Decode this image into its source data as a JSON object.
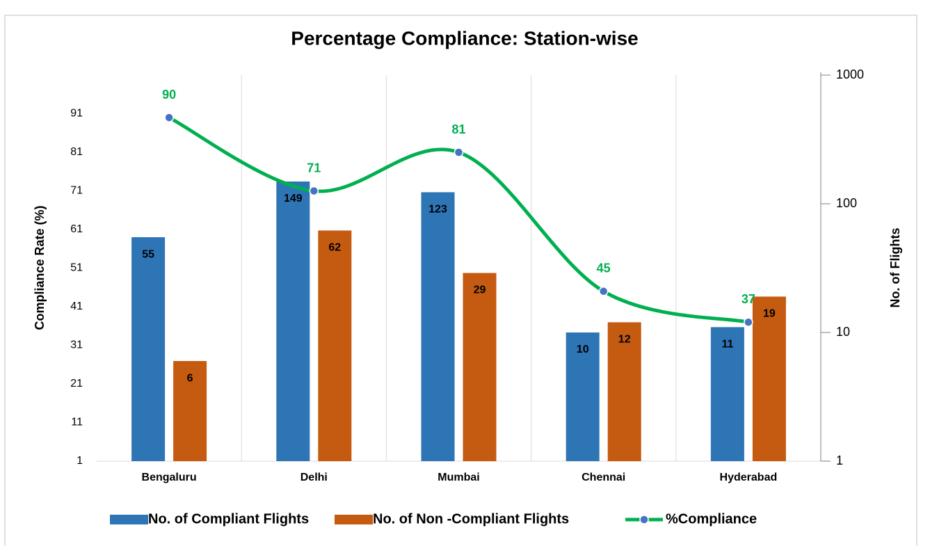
{
  "chart_data": {
    "type": "combo",
    "title": "Percentage Compliance: Station-wise",
    "categories": [
      "Bengaluru",
      "Delhi",
      "Mumbai",
      "Chennai",
      "Hyderabad"
    ],
    "series": [
      {
        "name": "No. of Compliant Flights",
        "type": "bar",
        "axis": "y2",
        "color": "#2e75b6",
        "values": [
          55,
          149,
          123,
          10,
          11
        ]
      },
      {
        "name": "No. of Non -Compliant Flights",
        "type": "bar",
        "axis": "y2",
        "color": "#c55a11",
        "values": [
          6,
          62,
          29,
          12,
          19
        ]
      },
      {
        "name": "%Compliance",
        "type": "line",
        "axis": "y",
        "color": "#00b050",
        "marker_color": "#4472c4",
        "values": [
          90,
          71,
          81,
          45,
          37
        ]
      }
    ],
    "ylabel": "Compliance Rate (%)",
    "y2label": "No. of Flights",
    "ylim": [
      1,
      101
    ],
    "yticks": [
      1,
      11,
      21,
      31,
      41,
      51,
      61,
      71,
      81,
      91
    ],
    "y2lim": [
      1,
      1000
    ],
    "y2ticks": [
      1,
      10,
      100,
      1000
    ],
    "y2log": true,
    "xgrid": true,
    "legend": "bottom"
  }
}
